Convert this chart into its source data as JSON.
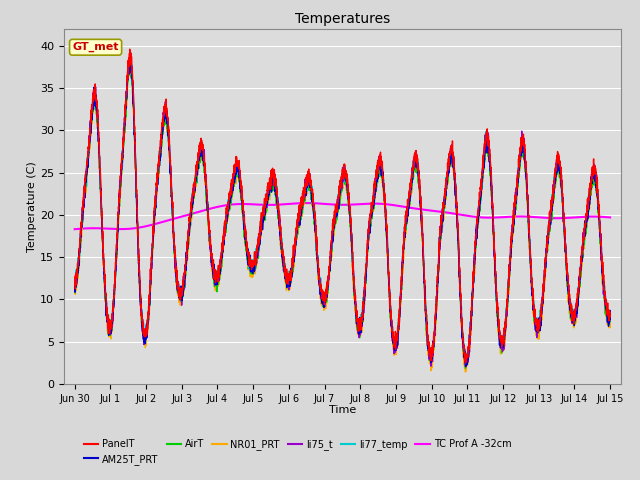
{
  "title": "Temperatures",
  "xlabel": "Time",
  "ylabel": "Temperature (C)",
  "ylim": [
    0,
    42
  ],
  "yticks": [
    0,
    5,
    10,
    15,
    20,
    25,
    30,
    35,
    40
  ],
  "background_color": "#d8d8d8",
  "plot_bg_color": "#dcdcdc",
  "annotation_text": "GT_met",
  "annotation_color": "#cc0000",
  "annotation_bg": "#ffffcc",
  "annotation_border": "#999900",
  "series_colors": {
    "PanelT": "#ff0000",
    "AM25T_PRT": "#0000cc",
    "AirT": "#00cc00",
    "NR01_PRT": "#ffaa00",
    "li75_t": "#9900cc",
    "li77_temp": "#00cccc",
    "TC Prof A -32cm": "#ff00ff"
  },
  "xtick_labels": [
    "Jun 30",
    "Jul 1",
    "Jul 2",
    "Jul 3",
    "Jul 4",
    "Jul 5",
    "Jul 6",
    "Jul 7",
    "Jul 8",
    "Jul 9",
    "Jul 10",
    "Jul 11",
    "Jul 12",
    "Jul 13",
    "Jul 14",
    "Jul 15"
  ],
  "linewidth": 1.0,
  "figsize": [
    6.4,
    4.8
  ],
  "dpi": 100
}
